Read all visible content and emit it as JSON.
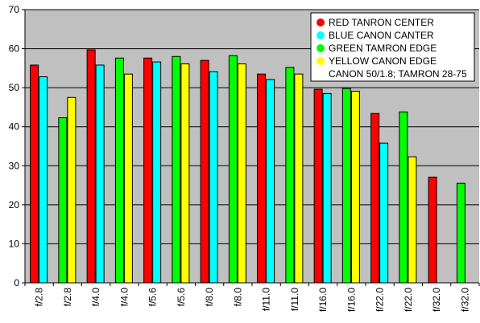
{
  "chart_data": {
    "type": "bar",
    "title": "",
    "xlabel": "",
    "ylabel": "",
    "ylim": [
      0,
      70
    ],
    "yticks": [
      0,
      10,
      20,
      30,
      40,
      50,
      60,
      70
    ],
    "grid": true,
    "legend_position": "top-right",
    "categories": [
      "f/2.8",
      "f/2.8",
      "f/4.0",
      "f/4.0",
      "f/5.6",
      "f/5.6",
      "f/8.0",
      "f/8.0",
      "f/11.0",
      "f/11.0",
      "f/16.0",
      "f/16.0",
      "f/22.0",
      "f/22.0",
      "f/32.0",
      "f/32.0"
    ],
    "bars": [
      {
        "series": "red",
        "value": 55.8
      },
      {
        "series": "blue",
        "value": 52.8
      },
      {
        "series": "green",
        "value": 42.3
      },
      {
        "series": "yellow",
        "value": 47.5
      },
      {
        "series": "red",
        "value": 59.7
      },
      {
        "series": "blue",
        "value": 55.8
      },
      {
        "series": "green",
        "value": 57.6
      },
      {
        "series": "yellow",
        "value": 53.5
      },
      {
        "series": "red",
        "value": 57.6
      },
      {
        "series": "blue",
        "value": 56.6
      },
      {
        "series": "green",
        "value": 58.0
      },
      {
        "series": "yellow",
        "value": 56.1
      },
      {
        "series": "red",
        "value": 57.0
      },
      {
        "series": "blue",
        "value": 54.1
      },
      {
        "series": "green",
        "value": 58.2
      },
      {
        "series": "yellow",
        "value": 56.1
      },
      {
        "series": "red",
        "value": 53.5
      },
      {
        "series": "blue",
        "value": 52.1
      },
      {
        "series": "green",
        "value": 55.2
      },
      {
        "series": "yellow",
        "value": 53.5
      },
      {
        "series": "red",
        "value": 49.6
      },
      {
        "series": "blue",
        "value": 48.5
      },
      {
        "series": "green",
        "value": 49.8
      },
      {
        "series": "yellow",
        "value": 49.1
      },
      {
        "series": "red",
        "value": 43.4
      },
      {
        "series": "blue",
        "value": 35.8
      },
      {
        "series": "green",
        "value": 43.8
      },
      {
        "series": "yellow",
        "value": 32.3
      },
      {
        "series": "red",
        "value": 27.1
      },
      {
        "series": "green",
        "value": 25.5
      }
    ],
    "series": [
      {
        "id": "red",
        "name": "RED TANRON CENTER",
        "color": "#ff0000"
      },
      {
        "id": "blue",
        "name": "BLUE CANON CANTER",
        "color": "#00ffff"
      },
      {
        "id": "green",
        "name": "GREEN TAMRON EDGE",
        "color": "#00ff00"
      },
      {
        "id": "yellow",
        "name": "YELLOW CANON EDGE",
        "color": "#ffff00"
      }
    ],
    "legend_note": "CANON 50/1.8; TAMRON 28-75"
  },
  "colors": {
    "plot_background": "#c0c0c0",
    "gridline": "#000000",
    "bar_outline": "#000000"
  }
}
